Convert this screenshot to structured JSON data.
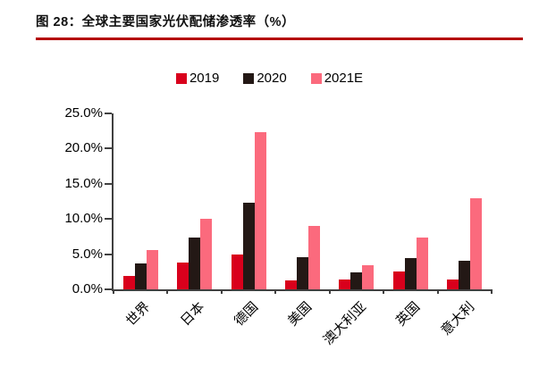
{
  "figure": {
    "title": "图 28：全球主要国家光伏配储渗透率（%）",
    "underline_color": "#b40000"
  },
  "legend": [
    {
      "label": "2019",
      "color": "#d9001c"
    },
    {
      "label": "2020",
      "color": "#231815"
    },
    {
      "label": "2021E",
      "color": "#fb6a7d"
    }
  ],
  "chart_data": {
    "type": "bar",
    "title": "图 28：全球主要国家光伏配储渗透率（%）",
    "categories": [
      "世界",
      "日本",
      "德国",
      "美国",
      "澳大利亚",
      "英国",
      "意大利"
    ],
    "series": [
      {
        "name": "2019",
        "color": "#d9001c",
        "values": [
          1.9,
          3.8,
          5.0,
          1.3,
          1.4,
          2.5,
          1.4
        ]
      },
      {
        "name": "2020",
        "color": "#231815",
        "values": [
          3.7,
          7.4,
          12.3,
          4.6,
          2.4,
          4.5,
          4.0
        ]
      },
      {
        "name": "2021E",
        "color": "#fb6a7d",
        "values": [
          5.6,
          10.0,
          22.3,
          9.0,
          3.4,
          7.3,
          13.0
        ]
      }
    ],
    "xlabel": "",
    "ylabel": "",
    "ylim": [
      0,
      25
    ],
    "ytick_step": 5,
    "ytick_labels": [
      "0.0%",
      "5.0%",
      "10.0%",
      "15.0%",
      "20.0%",
      "25.0%"
    ],
    "grid": false,
    "legend_position": "top-center",
    "axis_color": "#404040"
  }
}
